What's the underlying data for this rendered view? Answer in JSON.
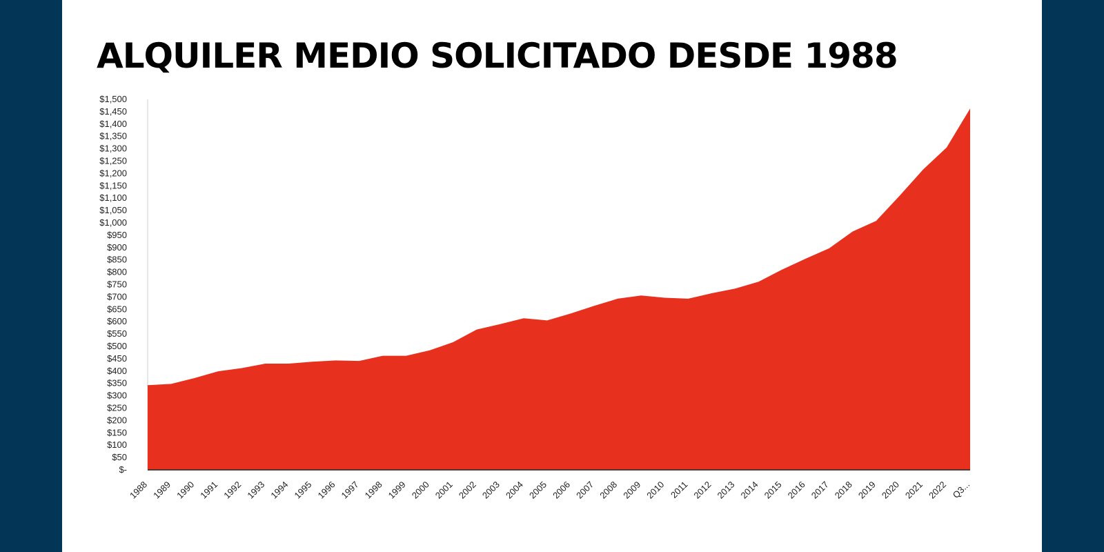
{
  "chart_data": {
    "type": "area",
    "title": "ALQUILER MEDIO SOLICITADO DESDE 1988",
    "xlabel": "",
    "ylabel": "",
    "ylim": [
      0,
      1500
    ],
    "ytick_step": 50,
    "ytick_labels": [
      "$-",
      "$50",
      "$100",
      "$150",
      "$200",
      "$250",
      "$300",
      "$350",
      "$400",
      "$450",
      "$500",
      "$550",
      "$600",
      "$650",
      "$700",
      "$750",
      "$800",
      "$850",
      "$900",
      "$950",
      "$1,000",
      "$1,050",
      "$1,100",
      "$1,150",
      "$1,200",
      "$1,250",
      "$1,300",
      "$1,350",
      "$1,400",
      "$1,450",
      "$1,500"
    ],
    "categories": [
      "1988",
      "1989",
      "1990",
      "1991",
      "1992",
      "1993",
      "1994",
      "1995",
      "1996",
      "1997",
      "1998",
      "1999",
      "2000",
      "2001",
      "2002",
      "2003",
      "2004",
      "2005",
      "2006",
      "2007",
      "2008",
      "2009",
      "2010",
      "2011",
      "2012",
      "2013",
      "2014",
      "2015",
      "2016",
      "2017",
      "2018",
      "2019",
      "2020",
      "2021",
      "2022",
      "Q3..."
    ],
    "values": [
      343,
      348,
      372,
      399,
      412,
      430,
      430,
      438,
      443,
      441,
      462,
      462,
      484,
      517,
      568,
      590,
      614,
      605,
      633,
      664,
      693,
      706,
      697,
      693,
      715,
      734,
      762,
      811,
      855,
      897,
      965,
      1008,
      1110,
      1216,
      1305,
      1463
    ],
    "grid": false,
    "color": "#e8301f",
    "legend": "none"
  }
}
